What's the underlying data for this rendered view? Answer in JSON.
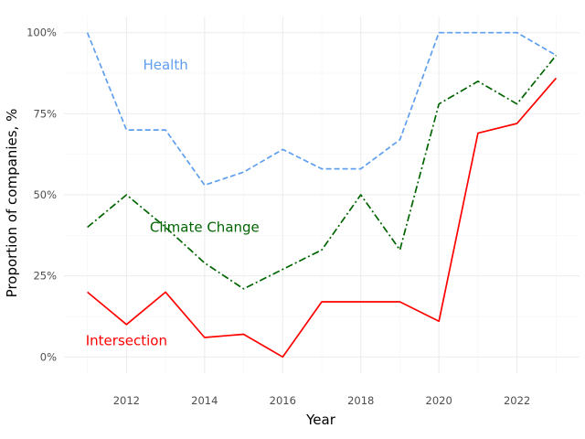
{
  "chart_data": {
    "type": "line",
    "title": "",
    "xlabel": "Year",
    "ylabel": "Proportion of companies, %",
    "x": [
      2011,
      2012,
      2013,
      2014,
      2015,
      2016,
      2017,
      2018,
      2019,
      2020,
      2021,
      2022,
      2023
    ],
    "xlim": [
      2010.4,
      2023.6
    ],
    "ylim": [
      -0.05,
      1.05
    ],
    "x_ticks": [
      2012,
      2014,
      2016,
      2018,
      2020,
      2022
    ],
    "x_tick_labels": [
      "2012",
      "2014",
      "2016",
      "2018",
      "2020",
      "2022"
    ],
    "y_ticks": [
      0,
      0.25,
      0.5,
      0.75,
      1.0
    ],
    "y_tick_labels": [
      "0%",
      "25%",
      "50%",
      "75%",
      "100%"
    ],
    "grid": true,
    "legend": "none (labels placed directly on chart)",
    "series": [
      {
        "name": "Health",
        "color": "#5f9ff0",
        "linestyle": "dashed",
        "values": [
          1.0,
          0.7,
          0.7,
          0.53,
          0.57,
          0.64,
          0.58,
          0.58,
          0.67,
          1.0,
          1.0,
          1.0,
          0.93
        ]
      },
      {
        "name": "Climate Change",
        "color": "#006400",
        "linestyle": "dashdot",
        "values": [
          0.4,
          0.5,
          0.4,
          0.29,
          0.21,
          0.27,
          0.33,
          0.5,
          0.33,
          0.78,
          0.85,
          0.78,
          0.93
        ]
      },
      {
        "name": "Intersection",
        "color": "#ff0000",
        "linestyle": "solid",
        "values": [
          0.2,
          0.1,
          0.2,
          0.06,
          0.07,
          0.0,
          0.17,
          0.17,
          0.17,
          0.11,
          0.69,
          0.72,
          0.86
        ]
      }
    ]
  }
}
